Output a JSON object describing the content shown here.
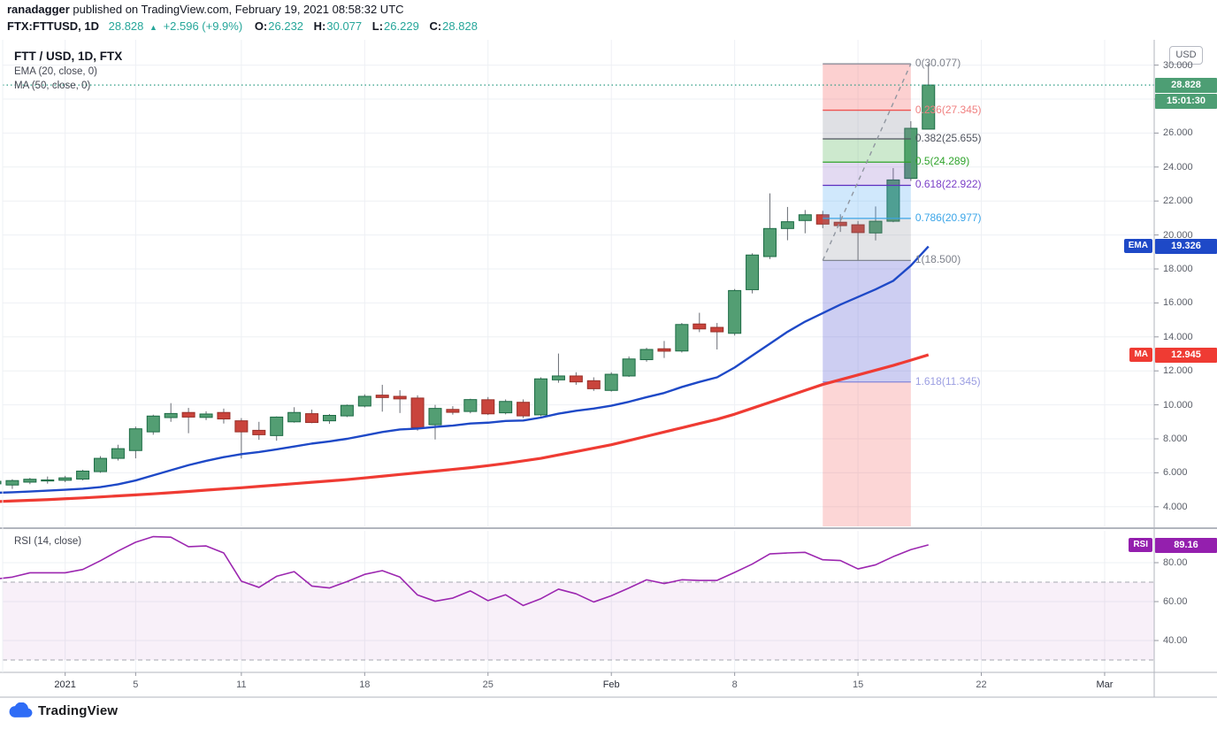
{
  "header": {
    "byline_user": "ranadagger",
    "byline_rest": " published on TradingView.com, February 19, 2021 08:58:32 UTC",
    "symbol": "FTX:FTTUSD, 1D",
    "price": "28.828",
    "arrow": "▲",
    "change": "+2.596 (+9.9%)",
    "o_label": "O:",
    "o_value": "26.232",
    "h_label": "H:",
    "h_value": "30.077",
    "l_label": "L:",
    "l_value": "26.229",
    "c_label": "C:",
    "c_value": "28.828"
  },
  "legend": {
    "title": "FTT / USD, 1D, FTX",
    "ema": "EMA (20, close, 0)",
    "ma": "MA (50, close, 0)"
  },
  "rsi": {
    "label": "RSI (14, close)"
  },
  "axis": {
    "currency": "USD",
    "price_ticks": [
      {
        "v": 30,
        "t": "30.000"
      },
      {
        "v": 28,
        "t": ""
      },
      {
        "v": 26,
        "t": "26.000"
      },
      {
        "v": 24,
        "t": "24.000"
      },
      {
        "v": 22,
        "t": "22.000"
      },
      {
        "v": 20,
        "t": "20.000"
      },
      {
        "v": 18,
        "t": "18.000"
      },
      {
        "v": 16,
        "t": "16.000"
      },
      {
        "v": 14,
        "t": "14.000"
      },
      {
        "v": 12,
        "t": "12.000"
      },
      {
        "v": 10,
        "t": "10.000"
      },
      {
        "v": 8,
        "t": "8.000"
      },
      {
        "v": 6,
        "t": "6.000"
      },
      {
        "v": 4,
        "t": "4.000"
      }
    ],
    "rsi_ticks": [
      {
        "v": 80,
        "t": "80.00"
      },
      {
        "v": 60,
        "t": "60.00"
      },
      {
        "v": 40,
        "t": "40.00"
      }
    ],
    "time_ticks": [
      {
        "i": 4,
        "t": "2021",
        "major": true
      },
      {
        "i": 8,
        "t": "5"
      },
      {
        "i": 14,
        "t": "11"
      },
      {
        "i": 21,
        "t": "18"
      },
      {
        "i": 28,
        "t": "25"
      },
      {
        "i": 35,
        "t": "Feb",
        "major": true
      },
      {
        "i": 42,
        "t": "8"
      },
      {
        "i": 49,
        "t": "15"
      },
      {
        "i": 56,
        "t": "22"
      },
      {
        "i": 63,
        "t": "Mar",
        "major": true
      }
    ]
  },
  "badges": {
    "price": "28.828",
    "countdown": "15:01:30",
    "ema_name": "EMA",
    "ema_value": "19.326",
    "ma_name": "MA",
    "ma_value": "12.945",
    "rsi_name": "RSI",
    "rsi_value": "89.16"
  },
  "logo": {
    "text": "TradingView"
  },
  "colors": {
    "accent_teal": "#26a69a",
    "up_fill": "#539e73",
    "up_border": "#1d6b45",
    "down_fill": "#c9443c",
    "down_border": "#982f28",
    "wick": "#6a6d75",
    "ema": "#1e49c7",
    "ma": "#ef3b33",
    "rsi_line": "#9c27b0",
    "price_badge": "#4d9e74",
    "ema_badge": "#1e49c7",
    "ma_badge": "#ef3b33",
    "rsi_badge": "#941fae",
    "price_line": "#2f9d85",
    "grid": "#eef0f4",
    "separator": "#b2b5be",
    "axis_text": "#5a5e68",
    "major_tick_text": "#2a2e39",
    "rsi_band_fill": "rgba(156,39,176,0.07)",
    "band_dash": "#a6a9b0",
    "trend_dash": "#9096a0",
    "logo_blue": "#2e6cf6"
  },
  "chart_data": [
    {
      "type": "candlestick",
      "title": "FTT / USD, 1D, FTX",
      "ylabel": "USD",
      "ylim": [
        3.4,
        31.0
      ],
      "last_price": 28.828,
      "countdown": "15:01:30",
      "dates": [
        "Dec 28",
        "Dec 29",
        "Dec 30",
        "Dec 31",
        "Jan 1",
        "Jan 2",
        "Jan 3",
        "Jan 4",
        "Jan 5",
        "Jan 6",
        "Jan 7",
        "Jan 8",
        "Jan 9",
        "Jan 10",
        "Jan 11",
        "Jan 12",
        "Jan 13",
        "Jan 14",
        "Jan 15",
        "Jan 16",
        "Jan 17",
        "Jan 18",
        "Jan 19",
        "Jan 20",
        "Jan 21",
        "Jan 22",
        "Jan 23",
        "Jan 24",
        "Jan 25",
        "Jan 26",
        "Jan 27",
        "Jan 28",
        "Jan 29",
        "Jan 30",
        "Jan 31",
        "Feb 1",
        "Feb 2",
        "Feb 3",
        "Feb 4",
        "Feb 5",
        "Feb 6",
        "Feb 7",
        "Feb 8",
        "Feb 9",
        "Feb 10",
        "Feb 11",
        "Feb 12",
        "Feb 13",
        "Feb 14",
        "Feb 15",
        "Feb 16",
        "Feb 17",
        "Feb 18",
        "Feb 19"
      ],
      "open": [
        5.35,
        5.28,
        5.45,
        5.55,
        5.56,
        5.63,
        6.07,
        6.85,
        7.31,
        8.41,
        9.25,
        9.55,
        9.26,
        9.55,
        9.06,
        8.5,
        8.19,
        9.0,
        9.48,
        9.06,
        9.35,
        9.93,
        10.57,
        10.5,
        10.4,
        8.83,
        9.73,
        9.61,
        10.3,
        9.53,
        10.15,
        9.41,
        11.47,
        11.7,
        11.42,
        10.85,
        11.7,
        12.66,
        13.3,
        13.17,
        14.76,
        14.56,
        14.21,
        16.78,
        18.73,
        20.38,
        20.85,
        21.19,
        20.75,
        20.6,
        20.12,
        20.81,
        23.33,
        26.232
      ],
      "high": [
        5.6,
        5.62,
        5.7,
        5.78,
        5.82,
        6.18,
        6.98,
        7.65,
        8.72,
        9.42,
        10.1,
        9.82,
        9.62,
        9.78,
        9.22,
        9.0,
        9.32,
        9.86,
        9.72,
        9.46,
        10.02,
        10.62,
        11.18,
        10.86,
        10.56,
        10.0,
        9.92,
        10.36,
        10.46,
        10.32,
        10.32,
        11.62,
        13.02,
        11.92,
        11.62,
        11.92,
        12.85,
        13.36,
        13.76,
        14.82,
        15.42,
        14.82,
        16.82,
        18.92,
        22.45,
        21.65,
        21.47,
        21.42,
        21.22,
        20.82,
        21.68,
        23.94,
        26.7,
        30.077
      ],
      "low": [
        5.18,
        5.05,
        5.33,
        5.36,
        5.45,
        5.55,
        6.0,
        6.72,
        6.85,
        8.24,
        9.0,
        8.33,
        9.1,
        8.9,
        6.84,
        7.94,
        7.89,
        8.95,
        8.92,
        8.88,
        9.28,
        9.85,
        9.6,
        9.52,
        8.48,
        7.96,
        9.42,
        9.5,
        9.4,
        9.44,
        9.22,
        9.33,
        11.3,
        11.18,
        10.82,
        10.78,
        11.64,
        12.54,
        12.76,
        13.08,
        14.28,
        13.26,
        14.08,
        16.56,
        18.58,
        19.69,
        20.1,
        20.4,
        20.18,
        18.5,
        19.68,
        20.75,
        23.18,
        26.229
      ],
      "close": [
        5.5,
        5.54,
        5.62,
        5.58,
        5.7,
        6.1,
        6.85,
        7.42,
        8.59,
        9.34,
        9.49,
        9.28,
        9.46,
        9.17,
        8.41,
        8.24,
        9.28,
        9.55,
        8.96,
        9.38,
        9.97,
        10.5,
        10.43,
        10.35,
        8.66,
        9.79,
        9.56,
        10.31,
        9.47,
        10.2,
        9.35,
        11.53,
        11.7,
        11.35,
        10.95,
        11.8,
        12.7,
        13.26,
        13.16,
        14.73,
        14.47,
        14.3,
        16.73,
        18.82,
        20.38,
        20.78,
        21.19,
        20.64,
        20.55,
        20.14,
        20.81,
        23.24,
        26.28,
        28.828
      ],
      "overlays": [
        {
          "name": "EMA (20, close, 0)",
          "type": "line",
          "color": "#1e49c7",
          "last_value": 19.326,
          "values": [
            4.82,
            4.85,
            4.9,
            4.95,
            5.0,
            5.06,
            5.16,
            5.32,
            5.55,
            5.85,
            6.15,
            6.45,
            6.7,
            6.92,
            7.1,
            7.22,
            7.38,
            7.55,
            7.72,
            7.85,
            8.0,
            8.2,
            8.4,
            8.55,
            8.6,
            8.7,
            8.78,
            8.9,
            8.95,
            9.05,
            9.08,
            9.25,
            9.48,
            9.65,
            9.78,
            9.95,
            10.18,
            10.45,
            10.7,
            11.05,
            11.35,
            11.62,
            12.2,
            12.9,
            13.6,
            14.3,
            14.9,
            15.4,
            15.9,
            16.35,
            16.8,
            17.3,
            18.2,
            19.326
          ]
        },
        {
          "name": "MA (50, close, 0)",
          "type": "line",
          "color": "#ef3b33",
          "last_value": 12.945,
          "values": [
            4.3,
            4.34,
            4.38,
            4.42,
            4.47,
            4.52,
            4.58,
            4.64,
            4.7,
            4.76,
            4.83,
            4.9,
            4.98,
            5.05,
            5.12,
            5.2,
            5.28,
            5.36,
            5.44,
            5.52,
            5.6,
            5.7,
            5.8,
            5.9,
            6.0,
            6.1,
            6.2,
            6.3,
            6.42,
            6.55,
            6.7,
            6.85,
            7.05,
            7.25,
            7.45,
            7.65,
            7.9,
            8.15,
            8.4,
            8.65,
            8.9,
            9.15,
            9.45,
            9.8,
            10.15,
            10.5,
            10.85,
            11.2,
            11.48,
            11.76,
            12.04,
            12.32,
            12.63,
            12.945
          ]
        }
      ],
      "fib": {
        "start_index": 47,
        "end_index": 52,
        "anchor_low": 18.5,
        "anchor_high": 30.077,
        "levels": [
          {
            "t": "0(30.077)",
            "v": 30.077,
            "line": "#808592",
            "text": "#7e828c"
          },
          {
            "t": "0.236(27.345)",
            "v": 27.345,
            "line": "#ef5350",
            "text": "#f08080"
          },
          {
            "t": "0.382(25.655)",
            "v": 25.655,
            "line": "#4f535e",
            "text": "#4f535e"
          },
          {
            "t": "0.5(24.289)",
            "v": 24.289,
            "line": "#2fa32b",
            "text": "#2fa32b"
          },
          {
            "t": "0.618(22.922)",
            "v": 22.922,
            "line": "#5d2fc0",
            "text": "#7b3fc8"
          },
          {
            "t": "0.786(20.977)",
            "v": 20.977,
            "line": "#3aa5e8",
            "text": "#3aa5e8"
          },
          {
            "t": "1(18.500)",
            "v": 18.5,
            "line": "#808592",
            "text": "#7e828c"
          },
          {
            "t": "1.618(11.345)",
            "v": 11.345,
            "line": "#8486d8",
            "text": "#9b9ee2"
          }
        ],
        "bands": [
          "rgba(244,98,98,0.30)",
          "rgba(128,133,146,0.25)",
          "rgba(76,175,80,0.28)",
          "rgba(126,87,194,0.22)",
          "rgba(66,165,245,0.25)",
          "rgba(128,133,146,0.22)",
          "rgba(101,103,214,0.32)"
        ],
        "below_band": "rgba(244,98,98,0.26)"
      }
    },
    {
      "type": "line",
      "title": "RSI (14, close)",
      "color": "#9c27b0",
      "ylim": [
        20,
        100
      ],
      "last_value": 89.16,
      "bands": {
        "upper": 70,
        "lower": 30
      },
      "values": [
        71.5,
        72.6,
        74.8,
        74.8,
        74.8,
        76.5,
        81.0,
        86.0,
        90.5,
        93.4,
        93.1,
        88.2,
        88.6,
        85.0,
        70.5,
        67.3,
        73.0,
        75.4,
        68.0,
        67.0,
        70.3,
        74.0,
        75.9,
        72.6,
        63.4,
        60.2,
        61.8,
        65.5,
        60.5,
        63.5,
        58.0,
        61.5,
        66.4,
        64.0,
        59.8,
        63.0,
        67.0,
        71.2,
        69.3,
        71.2,
        70.9,
        70.9,
        75.0,
        79.3,
        84.5,
        85.0,
        85.3,
        81.5,
        81.1,
        76.8,
        78.9,
        83.1,
        86.7,
        89.16
      ]
    }
  ]
}
